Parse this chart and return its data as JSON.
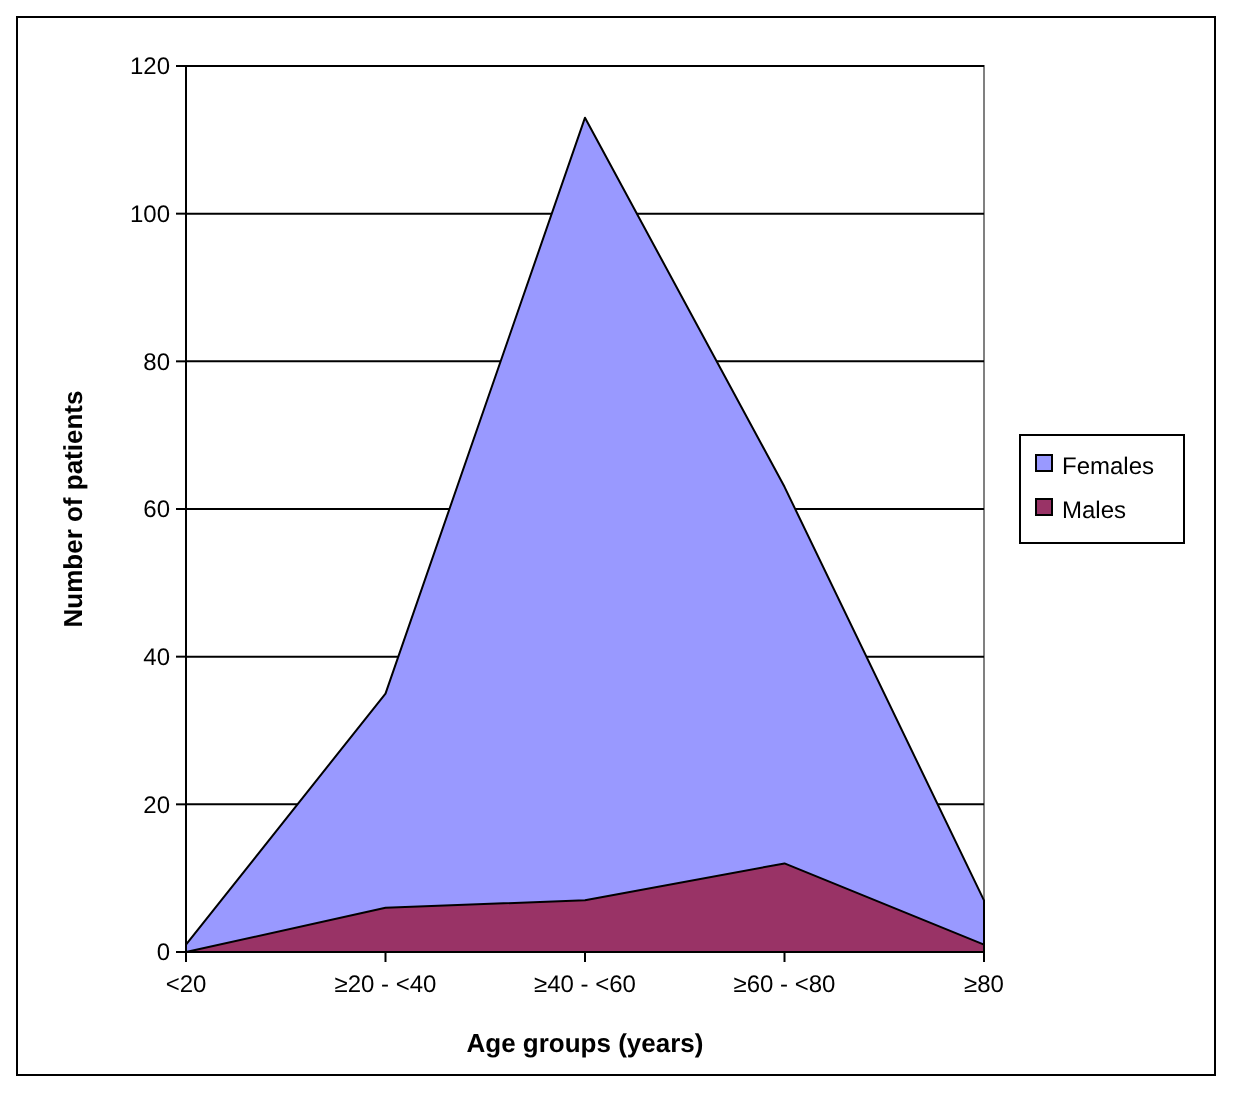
{
  "chart_data": {
    "type": "area",
    "xlabel": "Age groups (years)",
    "ylabel": "Number of patients",
    "categories": [
      "<20",
      "≥20 - <40",
      "≥40 - <60",
      "≥60 - <80",
      "≥80"
    ],
    "series": [
      {
        "name": "Females",
        "color": "#9999ff",
        "values": [
          1,
          35,
          113,
          63,
          7
        ]
      },
      {
        "name": "Males",
        "color": "#993366",
        "values": [
          0,
          6,
          7,
          12,
          1
        ]
      }
    ],
    "ylim": [
      0,
      120
    ],
    "yticks": [
      0,
      20,
      40,
      60,
      80,
      100,
      120
    ],
    "grid": "y",
    "legend": "right"
  }
}
